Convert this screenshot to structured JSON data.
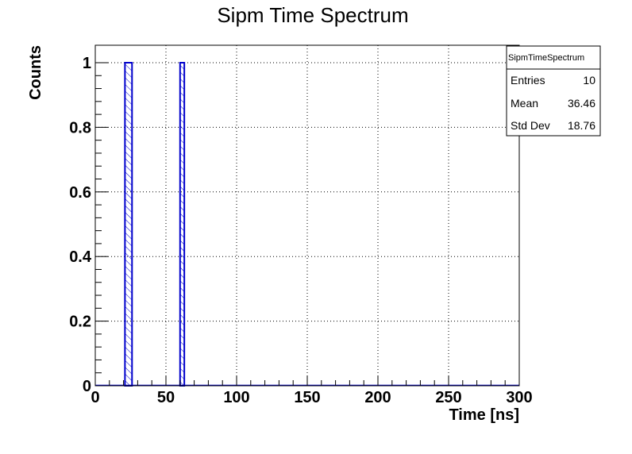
{
  "colors": {
    "histogram": "#0000cc",
    "axis": "#000000",
    "grid": "#000000",
    "background": "#ffffff"
  },
  "chart_data": {
    "type": "bar",
    "title": "Sipm Time Spectrum",
    "xlabel": "Time [ns]",
    "ylabel": "Counts",
    "xlim": [
      0,
      300
    ],
    "ylim": [
      0,
      1.05
    ],
    "x_ticks": [
      "0",
      "50",
      "100",
      "150",
      "200",
      "250",
      "300"
    ],
    "y_ticks": [
      "0",
      "0.2",
      "0.4",
      "0.6",
      "0.8",
      "1"
    ],
    "grid": true,
    "fill_style": "hatched",
    "bins": [
      {
        "x0": 21,
        "x1": 26,
        "value": 1
      },
      {
        "x0": 60,
        "x1": 63,
        "value": 1
      }
    ],
    "stats_box": {
      "title": "SipmTimeSpectrum",
      "placement": "top-right",
      "rows": [
        {
          "label": "Entries",
          "value": "10"
        },
        {
          "label": "Mean",
          "value": "36.46"
        },
        {
          "label": "Std Dev",
          "value": "18.76"
        }
      ]
    }
  }
}
